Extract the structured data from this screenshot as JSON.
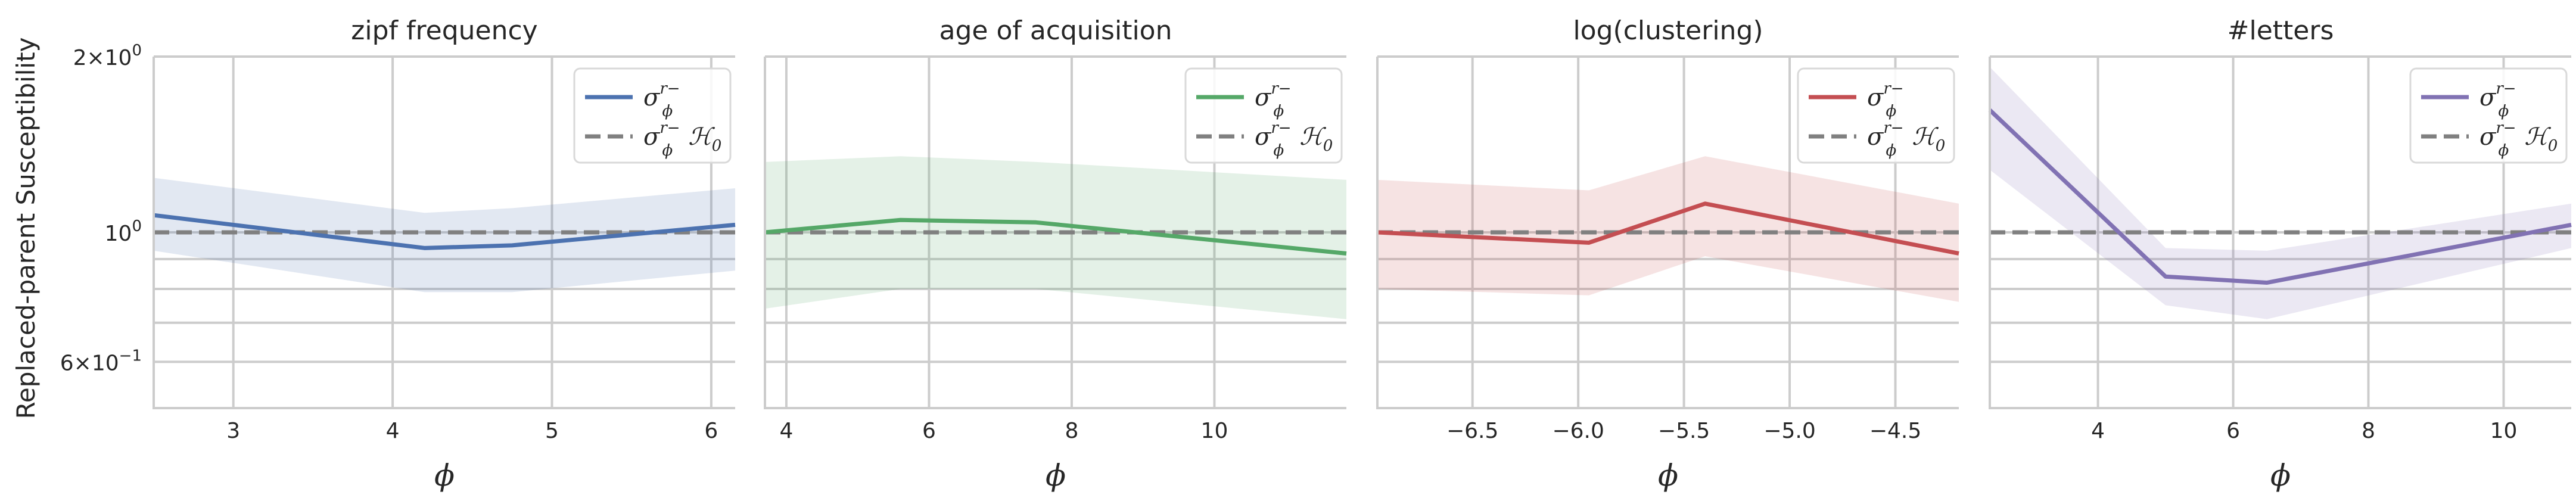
{
  "figure": {
    "ylabel": "Replaced-parent Susceptibility",
    "xlabel": "ϕ",
    "y_scale": "log",
    "ylim": [
      0.5,
      2.0
    ],
    "y_major_ticks": [
      {
        "value": 2.0,
        "base": "2×10",
        "exp": "0"
      },
      {
        "value": 1.0,
        "base": "10",
        "exp": "0"
      },
      {
        "value": 0.6,
        "base": "6×10",
        "exp": "−1"
      }
    ],
    "y_minor_gridlines": [
      0.7,
      0.8,
      0.9
    ],
    "null_line_value": 1.0,
    "null_line_color": "#808080"
  },
  "legend": {
    "sigma": "σ",
    "sub": "ϕ",
    "sup": "r−",
    "h0": " ℋ",
    "h0_sub": "0"
  },
  "chart_data": [
    {
      "type": "line",
      "title": "zipf frequency",
      "color": "#4c72b0",
      "band_color": "#4c72b0",
      "xlim": [
        2.5,
        6.15
      ],
      "xticks": [
        3,
        4,
        5,
        6
      ],
      "xtick_labels": [
        "3",
        "4",
        "5",
        "6"
      ],
      "x": [
        2.5,
        4.2,
        4.75,
        6.15
      ],
      "y": [
        1.07,
        0.94,
        0.95,
        1.03
      ],
      "y_lower": [
        0.93,
        0.79,
        0.79,
        0.86
      ],
      "y_upper": [
        1.24,
        1.08,
        1.1,
        1.19
      ]
    },
    {
      "type": "line",
      "title": "age of acquisition",
      "color": "#55a868",
      "band_color": "#55a868",
      "xlim": [
        3.7,
        11.85
      ],
      "xticks": [
        4,
        6,
        8,
        10
      ],
      "xtick_labels": [
        "4",
        "6",
        "8",
        "10"
      ],
      "x": [
        3.7,
        5.6,
        7.5,
        11.85
      ],
      "y": [
        1.0,
        1.05,
        1.04,
        0.92
      ],
      "y_lower": [
        0.74,
        0.8,
        0.8,
        0.71
      ],
      "y_upper": [
        1.32,
        1.35,
        1.32,
        1.23
      ]
    },
    {
      "type": "line",
      "title": "log(clustering)",
      "color": "#c44e52",
      "band_color": "#c44e52",
      "xlim": [
        -6.95,
        -4.2
      ],
      "xticks": [
        -6.5,
        -6.0,
        -5.5,
        -5.0,
        -4.5
      ],
      "xtick_labels": [
        "−6.5",
        "−6.0",
        "−5.5",
        "−5.0",
        "−4.5"
      ],
      "x": [
        -6.95,
        -5.95,
        -5.4,
        -4.2
      ],
      "y": [
        1.0,
        0.96,
        1.12,
        0.92
      ],
      "y_lower": [
        0.8,
        0.78,
        0.91,
        0.76
      ],
      "y_upper": [
        1.23,
        1.18,
        1.35,
        1.12
      ]
    },
    {
      "type": "line",
      "title": "#letters",
      "color": "#8172b3",
      "band_color": "#8172b3",
      "xlim": [
        2.4,
        11.0
      ],
      "xticks": [
        4,
        6,
        8,
        10
      ],
      "xtick_labels": [
        "4",
        "6",
        "8",
        "10"
      ],
      "x": [
        2.4,
        5.0,
        6.5,
        11.0
      ],
      "y": [
        1.62,
        0.84,
        0.82,
        1.03
      ],
      "y_lower": [
        1.28,
        0.75,
        0.71,
        0.94
      ],
      "y_upper": [
        1.92,
        0.94,
        0.93,
        1.12
      ]
    }
  ]
}
